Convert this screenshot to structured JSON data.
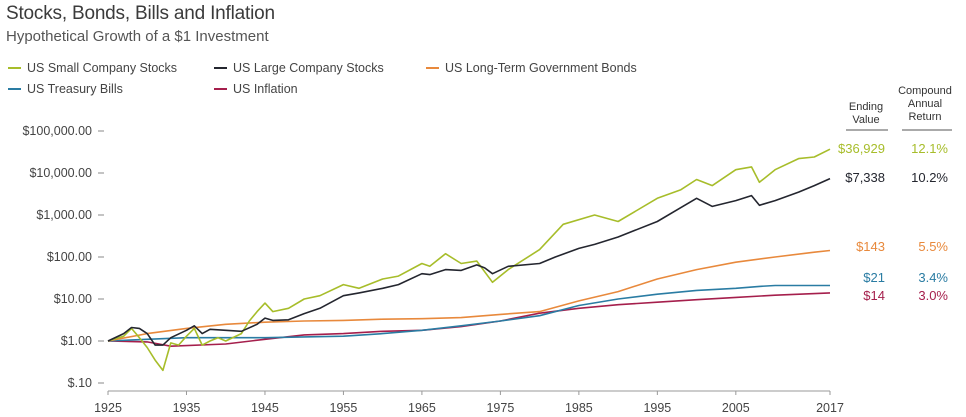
{
  "chart_data": {
    "type": "line",
    "title": "Stocks, Bonds, Bills and Inflation",
    "subtitle": "Hypothetical Growth of a $1 Investment",
    "y_scale": "log",
    "ylim": [
      0.1,
      100000
    ],
    "xlim": [
      1925,
      2017
    ],
    "x_ticks": [
      "1925",
      "1935",
      "1945",
      "1955",
      "1965",
      "1975",
      "1985",
      "1995",
      "2005",
      "2017"
    ],
    "y_ticks": [
      "$.10",
      "$1.00",
      "$10.00",
      "$100.00",
      "$1,000.00",
      "$10,000.00",
      "$100,000.00"
    ],
    "table_headers": {
      "ending": "Ending Value",
      "cagr": "Compound Annual Return"
    },
    "series": [
      {
        "name": "US Small Company Stocks",
        "color": "#a7bd2a",
        "ending_value": "$36,929",
        "cagr": "12.1%",
        "x": [
          1925,
          1927,
          1928,
          1929,
          1930,
          1931,
          1932,
          1933,
          1934,
          1935,
          1936,
          1937,
          1938,
          1939,
          1940,
          1942,
          1943,
          1944,
          1945,
          1946,
          1948,
          1950,
          1952,
          1955,
          1957,
          1960,
          1962,
          1965,
          1966,
          1968,
          1970,
          1972,
          1974,
          1976,
          1980,
          1983,
          1987,
          1990,
          1995,
          1998,
          2000,
          2002,
          2005,
          2007,
          2008,
          2010,
          2013,
          2015,
          2017
        ],
        "y": [
          1,
          1.3,
          2.0,
          1.2,
          0.7,
          0.35,
          0.2,
          0.9,
          0.8,
          1.3,
          2.0,
          0.8,
          1.0,
          1.2,
          1.0,
          1.5,
          3,
          5,
          8,
          5,
          6,
          10,
          12,
          22,
          18,
          30,
          35,
          70,
          60,
          120,
          70,
          80,
          25,
          50,
          150,
          600,
          1000,
          700,
          2500,
          4000,
          7000,
          5000,
          12000,
          14000,
          6000,
          12000,
          22000,
          24000,
          36929
        ]
      },
      {
        "name": "US Large Company Stocks",
        "color": "#24262f",
        "ending_value": "$7,338",
        "cagr": "10.2%",
        "x": [
          1925,
          1927,
          1928,
          1929,
          1930,
          1931,
          1932,
          1933,
          1935,
          1936,
          1937,
          1938,
          1940,
          1942,
          1944,
          1945,
          1946,
          1948,
          1950,
          1952,
          1955,
          1957,
          1960,
          1962,
          1965,
          1966,
          1968,
          1970,
          1972,
          1973,
          1974,
          1976,
          1980,
          1982,
          1985,
          1987,
          1990,
          1995,
          1998,
          2000,
          2002,
          2005,
          2007,
          2008,
          2010,
          2013,
          2015,
          2017
        ],
        "y": [
          1,
          1.5,
          2.1,
          2.0,
          1.5,
          0.8,
          0.8,
          1.2,
          1.8,
          2.3,
          1.5,
          1.9,
          1.8,
          1.7,
          2.5,
          3.5,
          3.1,
          3.2,
          4.5,
          6.0,
          12,
          14,
          18,
          22,
          40,
          38,
          50,
          48,
          65,
          55,
          40,
          60,
          70,
          100,
          160,
          200,
          300,
          700,
          1500,
          2500,
          1600,
          2200,
          2900,
          1700,
          2200,
          3500,
          5000,
          7338
        ]
      },
      {
        "name": "US Long-Term Government Bonds",
        "color": "#e8893c",
        "ending_value": "$143",
        "cagr": "5.5%",
        "x": [
          1925,
          1930,
          1935,
          1940,
          1945,
          1950,
          1955,
          1960,
          1965,
          1970,
          1975,
          1980,
          1985,
          1990,
          1995,
          2000,
          2005,
          2010,
          2015,
          2017
        ],
        "y": [
          1,
          1.5,
          2.0,
          2.5,
          2.8,
          3.0,
          3.1,
          3.3,
          3.4,
          3.6,
          4.3,
          5.0,
          9,
          15,
          30,
          50,
          75,
          100,
          130,
          143
        ]
      },
      {
        "name": "US Treasury Bills",
        "color": "#2a7ca3",
        "ending_value": "$21",
        "cagr": "3.4%",
        "x": [
          1925,
          1930,
          1935,
          1940,
          1945,
          1950,
          1955,
          1960,
          1965,
          1970,
          1975,
          1980,
          1985,
          1990,
          1995,
          2000,
          2005,
          2008,
          2010,
          2017
        ],
        "y": [
          1,
          1.1,
          1.2,
          1.2,
          1.2,
          1.25,
          1.3,
          1.5,
          1.8,
          2.3,
          3.0,
          4.0,
          7,
          10,
          13,
          16,
          18,
          20,
          21,
          21
        ]
      },
      {
        "name": "US Inflation",
        "color": "#a51f4c",
        "ending_value": "$14",
        "cagr": "3.0%",
        "x": [
          1925,
          1930,
          1933,
          1940,
          1945,
          1950,
          1955,
          1960,
          1965,
          1970,
          1975,
          1980,
          1985,
          1990,
          1995,
          2000,
          2005,
          2010,
          2017
        ],
        "y": [
          1,
          0.95,
          0.75,
          0.85,
          1.1,
          1.4,
          1.5,
          1.7,
          1.8,
          2.2,
          3.0,
          4.6,
          6.0,
          7.3,
          8.4,
          9.6,
          10.9,
          12.3,
          14
        ]
      }
    ]
  }
}
